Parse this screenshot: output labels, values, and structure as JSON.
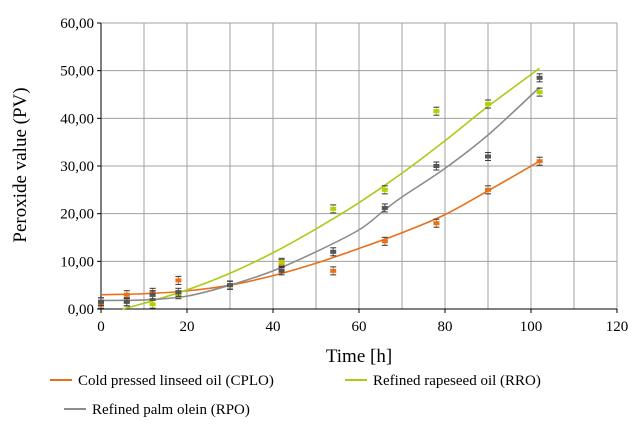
{
  "chart_data": {
    "type": "scatter",
    "xlabel": "Time [h]",
    "ylabel": "Peroxide value (PV)",
    "xlim": [
      0,
      120
    ],
    "ylim": [
      0,
      60
    ],
    "x_ticks": [
      0,
      20,
      40,
      60,
      80,
      100,
      120
    ],
    "x_tick_labels": [
      "0",
      "20",
      "40",
      "60",
      "80",
      "100",
      "120"
    ],
    "y_ticks": [
      0,
      10,
      20,
      30,
      40,
      50,
      60
    ],
    "y_tick_labels": [
      "0,00",
      "10,00",
      "20,00",
      "30,00",
      "40,00",
      "50,00",
      "60,00"
    ],
    "x_grid_step": 10,
    "grid": true,
    "legend_position": "bottom",
    "series": [
      {
        "name": "Cold pressed linseed oil (CPLO)",
        "color": "#e8701a",
        "marker_color": "#e8701a",
        "points": [
          {
            "x": 0,
            "y": 1.0
          },
          {
            "x": 6,
            "y": 3.0
          },
          {
            "x": 12,
            "y": 3.5
          },
          {
            "x": 18,
            "y": 6.0
          },
          {
            "x": 30,
            "y": 5.0
          },
          {
            "x": 42,
            "y": 9.5
          },
          {
            "x": 54,
            "y": 8.0
          },
          {
            "x": 66,
            "y": 14.2
          },
          {
            "x": 78,
            "y": 18.0
          },
          {
            "x": 90,
            "y": 25.0
          },
          {
            "x": 102,
            "y": 31.0
          }
        ],
        "trend": [
          {
            "x": 0,
            "y": 3.0
          },
          {
            "x": 10,
            "y": 3.2
          },
          {
            "x": 20,
            "y": 3.8
          },
          {
            "x": 30,
            "y": 5.0
          },
          {
            "x": 40,
            "y": 7.0
          },
          {
            "x": 50,
            "y": 9.6
          },
          {
            "x": 60,
            "y": 12.7
          },
          {
            "x": 70,
            "y": 16.0
          },
          {
            "x": 80,
            "y": 19.8
          },
          {
            "x": 90,
            "y": 24.8
          },
          {
            "x": 102,
            "y": 31.0
          }
        ]
      },
      {
        "name": "Refined rapeseed oil (RRO)",
        "color": "#a8cc17",
        "marker_color": "#b4d000",
        "points": [
          {
            "x": 0,
            "y": 1.5
          },
          {
            "x": 6,
            "y": 1.5
          },
          {
            "x": 12,
            "y": 1.0
          },
          {
            "x": 18,
            "y": 3.0
          },
          {
            "x": 30,
            "y": 5.0
          },
          {
            "x": 42,
            "y": 9.8
          },
          {
            "x": 54,
            "y": 21.0
          },
          {
            "x": 66,
            "y": 25.0
          },
          {
            "x": 78,
            "y": 41.5
          },
          {
            "x": 90,
            "y": 43.0
          },
          {
            "x": 102,
            "y": 45.5
          }
        ],
        "trend": [
          {
            "x": 5,
            "y": 0
          },
          {
            "x": 10,
            "y": 1.2
          },
          {
            "x": 20,
            "y": 4.0
          },
          {
            "x": 30,
            "y": 7.5
          },
          {
            "x": 40,
            "y": 11.8
          },
          {
            "x": 50,
            "y": 16.8
          },
          {
            "x": 60,
            "y": 22.3
          },
          {
            "x": 70,
            "y": 28.5
          },
          {
            "x": 80,
            "y": 35.3
          },
          {
            "x": 90,
            "y": 42.5
          },
          {
            "x": 102,
            "y": 50.5
          }
        ]
      },
      {
        "name": "Refined palm olein (RPO)",
        "color": "#8c8c8c",
        "marker_color": "#555555",
        "points": [
          {
            "x": 0,
            "y": 1.5
          },
          {
            "x": 6,
            "y": 1.5
          },
          {
            "x": 12,
            "y": 3.0
          },
          {
            "x": 18,
            "y": 3.5
          },
          {
            "x": 30,
            "y": 5.0
          },
          {
            "x": 42,
            "y": 8.0
          },
          {
            "x": 54,
            "y": 12.0
          },
          {
            "x": 66,
            "y": 21.2
          },
          {
            "x": 78,
            "y": 30.0
          },
          {
            "x": 90,
            "y": 32.0
          },
          {
            "x": 102,
            "y": 48.5
          }
        ],
        "trend": [
          {
            "x": 0,
            "y": 1.8
          },
          {
            "x": 10,
            "y": 1.9
          },
          {
            "x": 20,
            "y": 2.7
          },
          {
            "x": 30,
            "y": 5.0
          },
          {
            "x": 40,
            "y": 8.0
          },
          {
            "x": 50,
            "y": 12.0
          },
          {
            "x": 60,
            "y": 16.6
          },
          {
            "x": 66,
            "y": 20.8
          },
          {
            "x": 70,
            "y": 23.5
          },
          {
            "x": 80,
            "y": 29.5
          },
          {
            "x": 90,
            "y": 36.5
          },
          {
            "x": 102,
            "y": 46.5
          }
        ]
      }
    ]
  }
}
